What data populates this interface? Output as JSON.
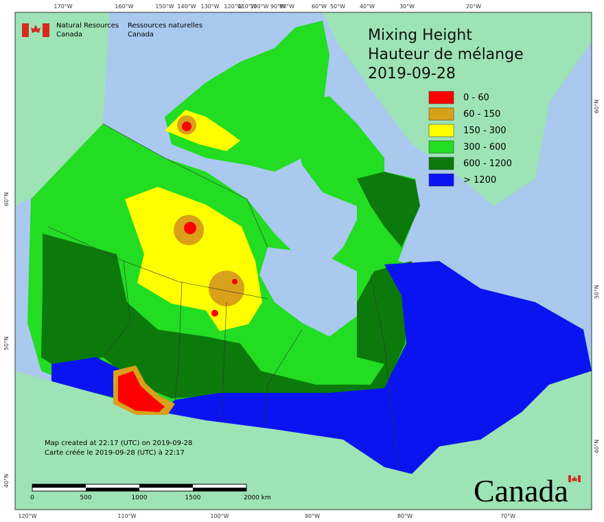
{
  "header": {
    "agency_en": [
      "Natural Resources",
      "Canada"
    ],
    "agency_fr": [
      "Ressources naturelles",
      "Canada"
    ]
  },
  "title": [
    "Mixing Height",
    "Hauteur de mélange",
    "2019-09-28"
  ],
  "legend": [
    {
      "label": "0 - 60",
      "color": "#ff0000"
    },
    {
      "label": "60 - 150",
      "color": "#d9a01a"
    },
    {
      "label": "150 - 300",
      "color": "#ffff00"
    },
    {
      "label": "300 - 600",
      "color": "#22dd22"
    },
    {
      "label": "600 - 1200",
      "color": "#0b7a0b"
    },
    {
      "label": "> 1200",
      "color": "#0a14f0"
    }
  ],
  "graticule": {
    "top": [
      "170°W",
      "160°W",
      "150°W",
      "140°W",
      "130°W",
      "120°W",
      "110°W",
      "100°W",
      "90°W",
      "80°W",
      "60°W",
      "50°W",
      "40°W",
      "30°W",
      "20°W"
    ],
    "bottom": [
      "120°W",
      "110°W",
      "100°W",
      "90°W",
      "80°W",
      "70°W"
    ],
    "left": [
      "60°N",
      "50°N",
      "40°N"
    ],
    "right": [
      "60°N",
      "50°N",
      "40°N"
    ]
  },
  "credits": [
    "Map created at 22:17 (UTC) on 2019-09-28",
    "Carte créée le 2019-09-28 (UTC) à 22:17"
  ],
  "scale": [
    "0",
    "500",
    "1000",
    "1500",
    "2000 km"
  ],
  "wordmark": "Canada"
}
